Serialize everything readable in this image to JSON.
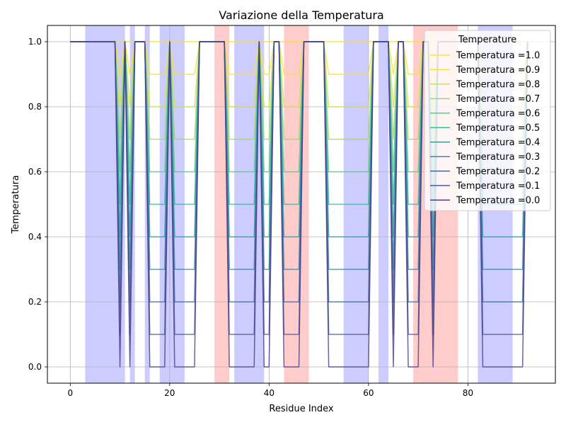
{
  "chart_data": {
    "type": "line",
    "title": "Variazione della Temperatura",
    "xlabel": "Residue Index",
    "ylabel": "Temperatura",
    "xlim": [
      -4.6,
      97.6
    ],
    "ylim": [
      -0.05,
      1.05
    ],
    "xticks": [
      0,
      20,
      40,
      60,
      80
    ],
    "yticks": [
      0.0,
      0.2,
      0.4,
      0.6,
      0.8,
      1.0
    ],
    "xtick_labels": [
      "0",
      "20",
      "40",
      "60",
      "80"
    ],
    "ytick_labels": [
      "0.0",
      "0.2",
      "0.4",
      "0.6",
      "0.8",
      "1.0"
    ],
    "grid": true,
    "legend": {
      "title": "Temperature",
      "placement": "upper right"
    },
    "x_range": [
      0,
      92
    ],
    "base_pattern": [
      [
        0,
        1
      ],
      [
        9,
        1
      ],
      [
        10,
        0
      ],
      [
        11,
        1
      ],
      [
        12,
        0
      ],
      [
        13,
        1
      ],
      [
        15,
        1
      ],
      [
        16,
        0
      ],
      [
        19,
        0
      ],
      [
        20,
        1
      ],
      [
        21,
        0
      ],
      [
        25,
        0
      ],
      [
        26,
        1
      ],
      [
        31,
        1
      ],
      [
        32,
        0
      ],
      [
        37,
        0
      ],
      [
        38,
        1
      ],
      [
        39,
        0
      ],
      [
        40,
        0
      ],
      [
        41,
        1
      ],
      [
        42,
        1
      ],
      [
        43,
        0
      ],
      [
        46,
        0
      ],
      [
        47,
        1
      ],
      [
        51,
        1
      ],
      [
        52,
        0
      ],
      [
        60,
        0
      ],
      [
        61,
        1
      ],
      [
        64,
        1
      ],
      [
        65,
        0
      ],
      [
        66,
        1
      ],
      [
        67,
        1
      ],
      [
        68,
        0
      ],
      [
        70,
        0
      ],
      [
        71,
        1
      ],
      [
        72,
        1
      ],
      [
        73,
        0
      ],
      [
        74,
        1
      ],
      [
        82,
        1
      ],
      [
        83,
        0
      ],
      [
        91,
        0
      ],
      [
        92,
        1
      ]
    ],
    "series": [
      {
        "name": "Temperatura =1.0",
        "temperature": 1.0,
        "color": "#fde725"
      },
      {
        "name": "Temperatura =0.9",
        "temperature": 0.9,
        "color": "#f5e03a"
      },
      {
        "name": "Temperatura =0.8",
        "temperature": 0.8,
        "color": "#cfe04b"
      },
      {
        "name": "Temperatura =0.7",
        "temperature": 0.7,
        "color": "#9fd66c"
      },
      {
        "name": "Temperatura =0.6",
        "temperature": 0.6,
        "color": "#65c98a"
      },
      {
        "name": "Temperatura =0.5",
        "temperature": 0.5,
        "color": "#35b79a"
      },
      {
        "name": "Temperatura =0.4",
        "temperature": 0.4,
        "color": "#2f9fa0"
      },
      {
        "name": "Temperatura =0.3",
        "temperature": 0.3,
        "color": "#3688a0"
      },
      {
        "name": "Temperatura =0.2",
        "temperature": 0.2,
        "color": "#3f6f9c"
      },
      {
        "name": "Temperatura =0.1",
        "temperature": 0.1,
        "color": "#46589a"
      },
      {
        "name": "Temperatura =0.0",
        "temperature": 0.0,
        "color": "#4a3c8c"
      }
    ],
    "highlight_regions": [
      {
        "start": 3,
        "end": 11,
        "kind": "blue"
      },
      {
        "start": 12,
        "end": 13,
        "kind": "blue"
      },
      {
        "start": 15,
        "end": 16,
        "kind": "blue"
      },
      {
        "start": 18,
        "end": 23,
        "kind": "blue"
      },
      {
        "start": 29,
        "end": 32,
        "kind": "red"
      },
      {
        "start": 33,
        "end": 39,
        "kind": "blue"
      },
      {
        "start": 43,
        "end": 48,
        "kind": "red"
      },
      {
        "start": 55,
        "end": 60,
        "kind": "blue"
      },
      {
        "start": 62,
        "end": 64,
        "kind": "blue"
      },
      {
        "start": 69,
        "end": 78,
        "kind": "red"
      },
      {
        "start": 82,
        "end": 89,
        "kind": "blue"
      }
    ],
    "region_colors": {
      "blue": "#0000ff",
      "red": "#ff0000"
    },
    "region_alpha": 0.2
  }
}
